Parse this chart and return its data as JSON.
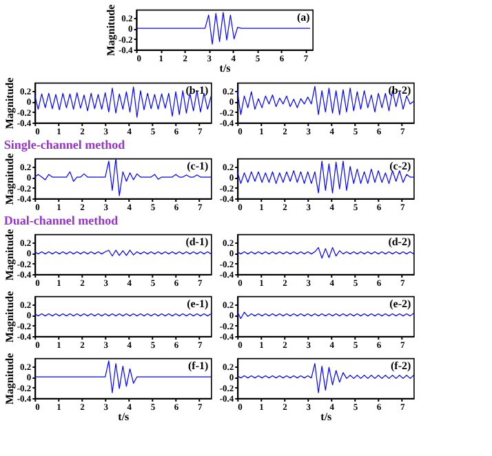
{
  "chart_data": [
    {
      "type": "line",
      "annotations": [
        "(a)"
      ],
      "ylabel": "Magnitude",
      "xlabel": "t/s",
      "color": "#0000ff",
      "xlim": [
        0,
        7.3
      ],
      "xticks": [
        0,
        1,
        2,
        3,
        4,
        5,
        6,
        7
      ],
      "ylim": [
        -0.4,
        0.35
      ],
      "yticks": [
        -0.4,
        -0.2,
        0,
        0.2
      ],
      "x": [
        0,
        0.15,
        0.3,
        0.45,
        0.6,
        0.75,
        0.9,
        1.05,
        1.2,
        1.35,
        1.5,
        1.65,
        1.8,
        1.95,
        2.1,
        2.25,
        2.4,
        2.55,
        2.7,
        2.85,
        3,
        3.15,
        3.3,
        3.45,
        3.6,
        3.75,
        3.9,
        4.05,
        4.2,
        4.35,
        4.5,
        4.65,
        4.8,
        4.95,
        5.1,
        5.25,
        5.4,
        5.55,
        5.7,
        5.85,
        6,
        6.15,
        6.3,
        6.45,
        6.6,
        6.75,
        6.9,
        7.05,
        7.2
      ],
      "values": [
        0,
        0,
        0,
        0,
        0,
        0,
        0,
        0,
        0,
        0,
        0,
        0,
        0,
        0,
        0,
        0,
        0,
        0,
        0,
        0,
        0.25,
        -0.3,
        0.28,
        -0.25,
        0.3,
        -0.22,
        0.25,
        -0.2,
        0.02,
        0,
        0,
        0,
        0,
        0,
        0,
        0,
        0,
        0,
        0,
        0,
        0,
        0,
        0,
        0,
        0,
        0,
        0,
        0,
        0
      ]
    },
    {
      "type": "line",
      "annotations": [
        "(b-1)"
      ],
      "ylabel": "Magnitude",
      "color": "#0000ff",
      "xlim": [
        0,
        7.5
      ],
      "xticks": [
        0,
        1,
        2,
        3,
        4,
        5,
        6,
        7
      ],
      "ylim": [
        -0.4,
        0.35
      ],
      "yticks": [
        -0.4,
        -0.2,
        0,
        0.2
      ],
      "x": [
        0,
        0.15,
        0.3,
        0.45,
        0.6,
        0.75,
        0.9,
        1.05,
        1.2,
        1.35,
        1.5,
        1.65,
        1.8,
        1.95,
        2.1,
        2.25,
        2.4,
        2.55,
        2.7,
        2.85,
        3,
        3.15,
        3.3,
        3.45,
        3.6,
        3.75,
        3.9,
        4.05,
        4.2,
        4.35,
        4.5,
        4.65,
        4.8,
        4.95,
        5.1,
        5.25,
        5.4,
        5.55,
        5.7,
        5.85,
        6,
        6.15,
        6.3,
        6.45,
        6.6,
        6.75,
        6.9,
        7.05,
        7.2,
        7.35,
        7.5
      ],
      "values": [
        0.12,
        -0.15,
        0.14,
        -0.12,
        0.15,
        -0.14,
        0.13,
        -0.16,
        0.15,
        -0.12,
        0.14,
        -0.15,
        0.16,
        -0.13,
        0.12,
        -0.18,
        0.15,
        -0.14,
        0.13,
        -0.15,
        0.16,
        -0.2,
        0.25,
        -0.22,
        0.14,
        -0.15,
        0.18,
        -0.2,
        0.27,
        -0.3,
        0.2,
        -0.16,
        0.15,
        -0.14,
        0.13,
        -0.15,
        0.14,
        -0.13,
        0.15,
        -0.28,
        0.18,
        -0.25,
        0.2,
        -0.22,
        0.15,
        -0.18,
        0.2,
        -0.2,
        0.15,
        -0.15,
        0.1
      ]
    },
    {
      "type": "line",
      "annotations": [
        "(b-2)"
      ],
      "color": "#0000ff",
      "xlim": [
        0,
        7.5
      ],
      "xticks": [
        0,
        1,
        2,
        3,
        4,
        5,
        6,
        7
      ],
      "ylim": [
        -0.4,
        0.35
      ],
      "yticks": [
        -0.4,
        -0.2,
        0,
        0.2
      ],
      "x": [
        0,
        0.15,
        0.3,
        0.45,
        0.6,
        0.75,
        0.9,
        1.05,
        1.2,
        1.35,
        1.5,
        1.65,
        1.8,
        1.95,
        2.1,
        2.25,
        2.4,
        2.55,
        2.7,
        2.85,
        3,
        3.15,
        3.3,
        3.45,
        3.6,
        3.75,
        3.9,
        4.05,
        4.2,
        4.35,
        4.5,
        4.65,
        4.8,
        4.95,
        5.1,
        5.25,
        5.4,
        5.55,
        5.7,
        5.85,
        6,
        6.15,
        6.3,
        6.45,
        6.6,
        6.75,
        6.9,
        7.05,
        7.2,
        7.35,
        7.5
      ],
      "values": [
        0.2,
        -0.25,
        0.1,
        -0.12,
        0.18,
        -0.15,
        0.05,
        -0.12,
        0.1,
        -0.05,
        0.12,
        -0.1,
        0.06,
        -0.05,
        0.1,
        -0.1,
        0.04,
        -0.12,
        0.05,
        -0.05,
        0.08,
        -0.05,
        0.28,
        -0.25,
        0.2,
        -0.2,
        0.25,
        -0.22,
        0.2,
        -0.25,
        0.22,
        -0.2,
        0.25,
        -0.18,
        0.18,
        -0.15,
        0.2,
        -0.12,
        0.12,
        -0.2,
        0.15,
        -0.12,
        0.15,
        -0.18,
        0.2,
        -0.1,
        0.18,
        -0.15,
        0.1,
        -0.05,
        0
      ]
    },
    {
      "type": "line",
      "title": "Single-channel method",
      "annotations": [
        "(c-1)"
      ],
      "ylabel": "Magnitude",
      "color": "#0000ff",
      "xlim": [
        0,
        7.5
      ],
      "xticks": [
        0,
        1,
        2,
        3,
        4,
        5,
        6,
        7
      ],
      "ylim": [
        -0.4,
        0.35
      ],
      "yticks": [
        -0.4,
        -0.2,
        0,
        0.2
      ],
      "x": [
        0,
        0.15,
        0.3,
        0.45,
        0.6,
        0.75,
        0.9,
        1.05,
        1.2,
        1.35,
        1.5,
        1.65,
        1.8,
        1.95,
        2.1,
        2.25,
        2.4,
        2.55,
        2.7,
        2.85,
        3,
        3.15,
        3.3,
        3.45,
        3.6,
        3.75,
        3.9,
        4.05,
        4.2,
        4.35,
        4.5,
        4.65,
        4.8,
        4.95,
        5.1,
        5.25,
        5.4,
        5.55,
        5.7,
        5.85,
        6,
        6.15,
        6.3,
        6.45,
        6.6,
        6.75,
        6.9,
        7.05,
        7.2,
        7.35,
        7.5
      ],
      "values": [
        0,
        0.05,
        0,
        -0.05,
        0.05,
        0,
        0,
        0,
        0,
        0,
        0.1,
        -0.08,
        0,
        0,
        0.06,
        0,
        0,
        0,
        0,
        0,
        0,
        0.3,
        -0.25,
        0.35,
        -0.35,
        0.1,
        -0.08,
        0.08,
        -0.05,
        0.06,
        0,
        0,
        0,
        0,
        0.05,
        -0.04,
        0,
        0,
        0,
        0,
        0.05,
        0,
        0,
        0.04,
        0,
        0,
        0.04,
        0,
        0,
        0,
        0
      ]
    },
    {
      "type": "line",
      "annotations": [
        "(c-2)"
      ],
      "color": "#0000ff",
      "xlim": [
        0,
        7.5
      ],
      "xticks": [
        0,
        1,
        2,
        3,
        4,
        5,
        6,
        7
      ],
      "ylim": [
        -0.4,
        0.35
      ],
      "yticks": [
        -0.4,
        -0.2,
        0,
        0.2
      ],
      "x": [
        0,
        0.15,
        0.3,
        0.45,
        0.6,
        0.75,
        0.9,
        1.05,
        1.2,
        1.35,
        1.5,
        1.65,
        1.8,
        1.95,
        2.1,
        2.25,
        2.4,
        2.55,
        2.7,
        2.85,
        3,
        3.15,
        3.3,
        3.45,
        3.6,
        3.75,
        3.9,
        4.05,
        4.2,
        4.35,
        4.5,
        4.65,
        4.8,
        4.95,
        5.1,
        5.25,
        5.4,
        5.55,
        5.7,
        5.85,
        6,
        6.15,
        6.3,
        6.45,
        6.6,
        6.75,
        6.9,
        7.05,
        7.2,
        7.35,
        7.5
      ],
      "values": [
        0.1,
        -0.12,
        0.08,
        -0.1,
        0.1,
        -0.08,
        0.1,
        -0.1,
        0.08,
        -0.1,
        0.1,
        -0.12,
        0.08,
        -0.1,
        0.1,
        -0.08,
        0.12,
        -0.1,
        0.1,
        -0.12,
        0.1,
        -0.12,
        0.1,
        -0.3,
        0.3,
        -0.25,
        0.25,
        -0.3,
        0.28,
        -0.22,
        0.3,
        -0.25,
        0.2,
        -0.12,
        0.15,
        -0.12,
        0.1,
        -0.12,
        0.15,
        -0.1,
        0.12,
        -0.1,
        0.08,
        -0.12,
        0.12,
        -0.08,
        0.12,
        -0.1,
        0.05,
        0,
        0
      ]
    },
    {
      "type": "line",
      "title": "Dual-channel method",
      "annotations": [
        "(d-1)"
      ],
      "ylabel": "Magnitude",
      "color": "#0000ff",
      "xlim": [
        0,
        7.5
      ],
      "xticks": [
        0,
        1,
        2,
        3,
        4,
        5,
        6,
        7
      ],
      "ylim": [
        -0.4,
        0.35
      ],
      "yticks": [
        -0.4,
        -0.2,
        0,
        0.2
      ],
      "x": [
        0,
        0.15,
        0.3,
        0.45,
        0.6,
        0.75,
        0.9,
        1.05,
        1.2,
        1.35,
        1.5,
        1.65,
        1.8,
        1.95,
        2.1,
        2.25,
        2.4,
        2.55,
        2.7,
        2.85,
        3,
        3.15,
        3.3,
        3.45,
        3.6,
        3.75,
        3.9,
        4.05,
        4.2,
        4.35,
        4.5,
        4.65,
        4.8,
        4.95,
        5.1,
        5.25,
        5.4,
        5.55,
        5.7,
        5.85,
        6,
        6.15,
        6.3,
        6.45,
        6.6,
        6.75,
        6.9,
        7.05,
        7.2,
        7.35,
        7.5
      ],
      "values": [
        0.02,
        -0.02,
        0.02,
        -0.02,
        0.02,
        -0.02,
        0.02,
        -0.02,
        0.02,
        -0.02,
        0.02,
        -0.02,
        0.02,
        -0.02,
        0.02,
        -0.02,
        0.02,
        -0.02,
        0.02,
        -0.02,
        0.02,
        0.05,
        -0.06,
        0.05,
        -0.05,
        0.04,
        -0.05,
        0.05,
        -0.04,
        0.02,
        -0.02,
        0.02,
        -0.02,
        0.02,
        -0.02,
        0.02,
        -0.02,
        0.02,
        -0.02,
        0.02,
        -0.02,
        0.02,
        -0.02,
        0.02,
        -0.02,
        0.02,
        -0.02,
        0.02,
        -0.02,
        0.02,
        -0.02
      ]
    },
    {
      "type": "line",
      "annotations": [
        "(d-2)"
      ],
      "color": "#0000ff",
      "xlim": [
        0,
        7.5
      ],
      "xticks": [
        0,
        1,
        2,
        3,
        4,
        5,
        6,
        7
      ],
      "ylim": [
        -0.4,
        0.35
      ],
      "yticks": [
        -0.4,
        -0.2,
        0,
        0.2
      ],
      "x": [
        0,
        0.15,
        0.3,
        0.45,
        0.6,
        0.75,
        0.9,
        1.05,
        1.2,
        1.35,
        1.5,
        1.65,
        1.8,
        1.95,
        2.1,
        2.25,
        2.4,
        2.55,
        2.7,
        2.85,
        3,
        3.15,
        3.3,
        3.45,
        3.6,
        3.75,
        3.9,
        4.05,
        4.2,
        4.35,
        4.5,
        4.65,
        4.8,
        4.95,
        5.1,
        5.25,
        5.4,
        5.55,
        5.7,
        5.85,
        6,
        6.15,
        6.3,
        6.45,
        6.6,
        6.75,
        6.9,
        7.05,
        7.2,
        7.35,
        7.5
      ],
      "values": [
        0.02,
        -0.02,
        0.02,
        -0.02,
        0.02,
        -0.02,
        0.02,
        -0.02,
        0.02,
        -0.02,
        0.02,
        -0.02,
        0.02,
        -0.02,
        0.02,
        -0.02,
        0.02,
        -0.02,
        0.02,
        -0.02,
        0.02,
        -0.02,
        0.02,
        0.1,
        -0.1,
        0.08,
        -0.09,
        0.1,
        -0.06,
        0.04,
        -0.02,
        0.02,
        -0.02,
        0.02,
        -0.02,
        0.02,
        -0.02,
        0.02,
        -0.02,
        0.02,
        -0.02,
        0.02,
        -0.02,
        0.02,
        -0.02,
        0.02,
        -0.02,
        0.02,
        -0.02,
        0.02,
        -0.02
      ]
    },
    {
      "type": "line",
      "annotations": [
        "(e-1)"
      ],
      "ylabel": "Magnitude",
      "color": "#0000ff",
      "xlim": [
        0,
        7.5
      ],
      "xticks": [
        0,
        1,
        2,
        3,
        4,
        5,
        6,
        7
      ],
      "ylim": [
        -0.4,
        0.35
      ],
      "yticks": [
        -0.4,
        -0.2,
        0,
        0.2
      ],
      "x": [
        0,
        0.15,
        0.3,
        0.45,
        0.6,
        0.75,
        0.9,
        1.05,
        1.2,
        1.35,
        1.5,
        1.65,
        1.8,
        1.95,
        2.1,
        2.25,
        2.4,
        2.55,
        2.7,
        2.85,
        3,
        3.15,
        3.3,
        3.45,
        3.6,
        3.75,
        3.9,
        4.05,
        4.2,
        4.35,
        4.5,
        4.65,
        4.8,
        4.95,
        5.1,
        5.25,
        5.4,
        5.55,
        5.7,
        5.85,
        6,
        6.15,
        6.3,
        6.45,
        6.6,
        6.75,
        6.9,
        7.05,
        7.2,
        7.35,
        7.5
      ],
      "values": [
        0.02,
        -0.02,
        0.02,
        -0.02,
        0.02,
        -0.02,
        0.02,
        -0.02,
        0.02,
        -0.02,
        0.02,
        -0.02,
        0.02,
        -0.02,
        0.02,
        -0.02,
        0.02,
        -0.02,
        0.02,
        -0.02,
        0.02,
        -0.02,
        0.02,
        -0.02,
        0.02,
        -0.02,
        0.02,
        -0.02,
        0.02,
        -0.02,
        0.02,
        -0.02,
        0.02,
        -0.02,
        0.02,
        -0.02,
        0.02,
        -0.02,
        0.02,
        -0.02,
        0.02,
        -0.02,
        0.02,
        -0.02,
        0.02,
        -0.02,
        0.02,
        -0.02,
        0.02,
        -0.02,
        0.02
      ]
    },
    {
      "type": "line",
      "annotations": [
        "(e-2)"
      ],
      "color": "#0000ff",
      "xlim": [
        0,
        7.5
      ],
      "xticks": [
        0,
        1,
        2,
        3,
        4,
        5,
        6,
        7
      ],
      "ylim": [
        -0.4,
        0.35
      ],
      "yticks": [
        -0.4,
        -0.2,
        0,
        0.2
      ],
      "x": [
        0,
        0.15,
        0.3,
        0.45,
        0.6,
        0.75,
        0.9,
        1.05,
        1.2,
        1.35,
        1.5,
        1.65,
        1.8,
        1.95,
        2.1,
        2.25,
        2.4,
        2.55,
        2.7,
        2.85,
        3,
        3.15,
        3.3,
        3.45,
        3.6,
        3.75,
        3.9,
        4.05,
        4.2,
        4.35,
        4.5,
        4.65,
        4.8,
        4.95,
        5.1,
        5.25,
        5.4,
        5.55,
        5.7,
        5.85,
        6,
        6.15,
        6.3,
        6.45,
        6.6,
        6.75,
        6.9,
        7.05,
        7.2,
        7.35,
        7.5
      ],
      "values": [
        0.06,
        -0.07,
        0.05,
        -0.03,
        0.02,
        -0.02,
        0.02,
        -0.02,
        0.02,
        -0.02,
        0.02,
        -0.02,
        0.02,
        -0.02,
        0.02,
        -0.02,
        0.02,
        -0.02,
        0.02,
        -0.02,
        0.02,
        -0.02,
        0.02,
        -0.02,
        0.02,
        -0.02,
        0.02,
        -0.02,
        0.02,
        -0.02,
        0.02,
        -0.02,
        0.02,
        -0.02,
        0.02,
        -0.02,
        0.02,
        -0.02,
        0.02,
        -0.02,
        0.02,
        -0.02,
        0.02,
        -0.02,
        0.02,
        -0.02,
        0.02,
        -0.02,
        0.02,
        -0.02,
        0.03
      ]
    },
    {
      "type": "line",
      "annotations": [
        "(f-1)"
      ],
      "ylabel": "Magnitude",
      "xlabel": "t/s",
      "color": "#0000ff",
      "xlim": [
        0,
        7.5
      ],
      "xticks": [
        0,
        1,
        2,
        3,
        4,
        5,
        6,
        7
      ],
      "ylim": [
        -0.4,
        0.35
      ],
      "yticks": [
        -0.4,
        -0.2,
        0,
        0.2
      ],
      "x": [
        0,
        0.15,
        0.3,
        0.45,
        0.6,
        0.75,
        0.9,
        1.05,
        1.2,
        1.35,
        1.5,
        1.65,
        1.8,
        1.95,
        2.1,
        2.25,
        2.4,
        2.55,
        2.7,
        2.85,
        3,
        3.15,
        3.3,
        3.45,
        3.6,
        3.75,
        3.9,
        4.05,
        4.2,
        4.35,
        4.5,
        4.65,
        4.8,
        4.95,
        5.1,
        5.25,
        5.4,
        5.55,
        5.7,
        5.85,
        6,
        6.15,
        6.3,
        6.45,
        6.6,
        6.75,
        6.9,
        7.05,
        7.2,
        7.35,
        7.5
      ],
      "values": [
        0,
        0,
        0,
        0,
        0,
        0,
        0,
        0,
        0,
        0,
        0,
        0,
        0,
        0,
        0,
        0,
        0,
        0,
        0,
        0,
        0,
        0.3,
        -0.3,
        0.25,
        -0.22,
        0.2,
        -0.18,
        0.15,
        -0.12,
        0,
        0,
        0,
        0,
        0,
        0,
        0,
        0,
        0,
        0,
        0,
        0,
        0,
        0,
        0,
        0,
        0,
        0,
        0,
        0,
        0,
        0
      ]
    },
    {
      "type": "line",
      "annotations": [
        "(f-2)"
      ],
      "xlabel": "t/s",
      "color": "#0000ff",
      "xlim": [
        0,
        7.5
      ],
      "xticks": [
        0,
        1,
        2,
        3,
        4,
        5,
        6,
        7
      ],
      "ylim": [
        -0.4,
        0.35
      ],
      "yticks": [
        -0.4,
        -0.2,
        0,
        0.2
      ],
      "x": [
        0,
        0.15,
        0.3,
        0.45,
        0.6,
        0.75,
        0.9,
        1.05,
        1.2,
        1.35,
        1.5,
        1.65,
        1.8,
        1.95,
        2.1,
        2.25,
        2.4,
        2.55,
        2.7,
        2.85,
        3,
        3.15,
        3.3,
        3.45,
        3.6,
        3.75,
        3.9,
        4.05,
        4.2,
        4.35,
        4.5,
        4.65,
        4.8,
        4.95,
        5.1,
        5.25,
        5.4,
        5.55,
        5.7,
        5.85,
        6,
        6.15,
        6.3,
        6.45,
        6.6,
        6.75,
        6.9,
        7.05,
        7.2,
        7.35,
        7.5
      ],
      "values": [
        0.02,
        -0.02,
        0.02,
        -0.02,
        0.02,
        -0.02,
        0.02,
        -0.02,
        0.02,
        -0.02,
        0.02,
        -0.02,
        0.02,
        -0.02,
        0.02,
        -0.02,
        0.02,
        -0.02,
        0.02,
        -0.02,
        0.02,
        -0.02,
        0.25,
        -0.3,
        0.2,
        -0.25,
        0.18,
        -0.15,
        0.12,
        -0.1,
        0.08,
        -0.03,
        0.03,
        -0.03,
        0.03,
        -0.03,
        0.03,
        -0.03,
        0.03,
        -0.03,
        0.03,
        -0.03,
        0.03,
        -0.03,
        0.03,
        -0.03,
        0.03,
        -0.03,
        0.03,
        -0.03,
        0.03
      ]
    }
  ]
}
